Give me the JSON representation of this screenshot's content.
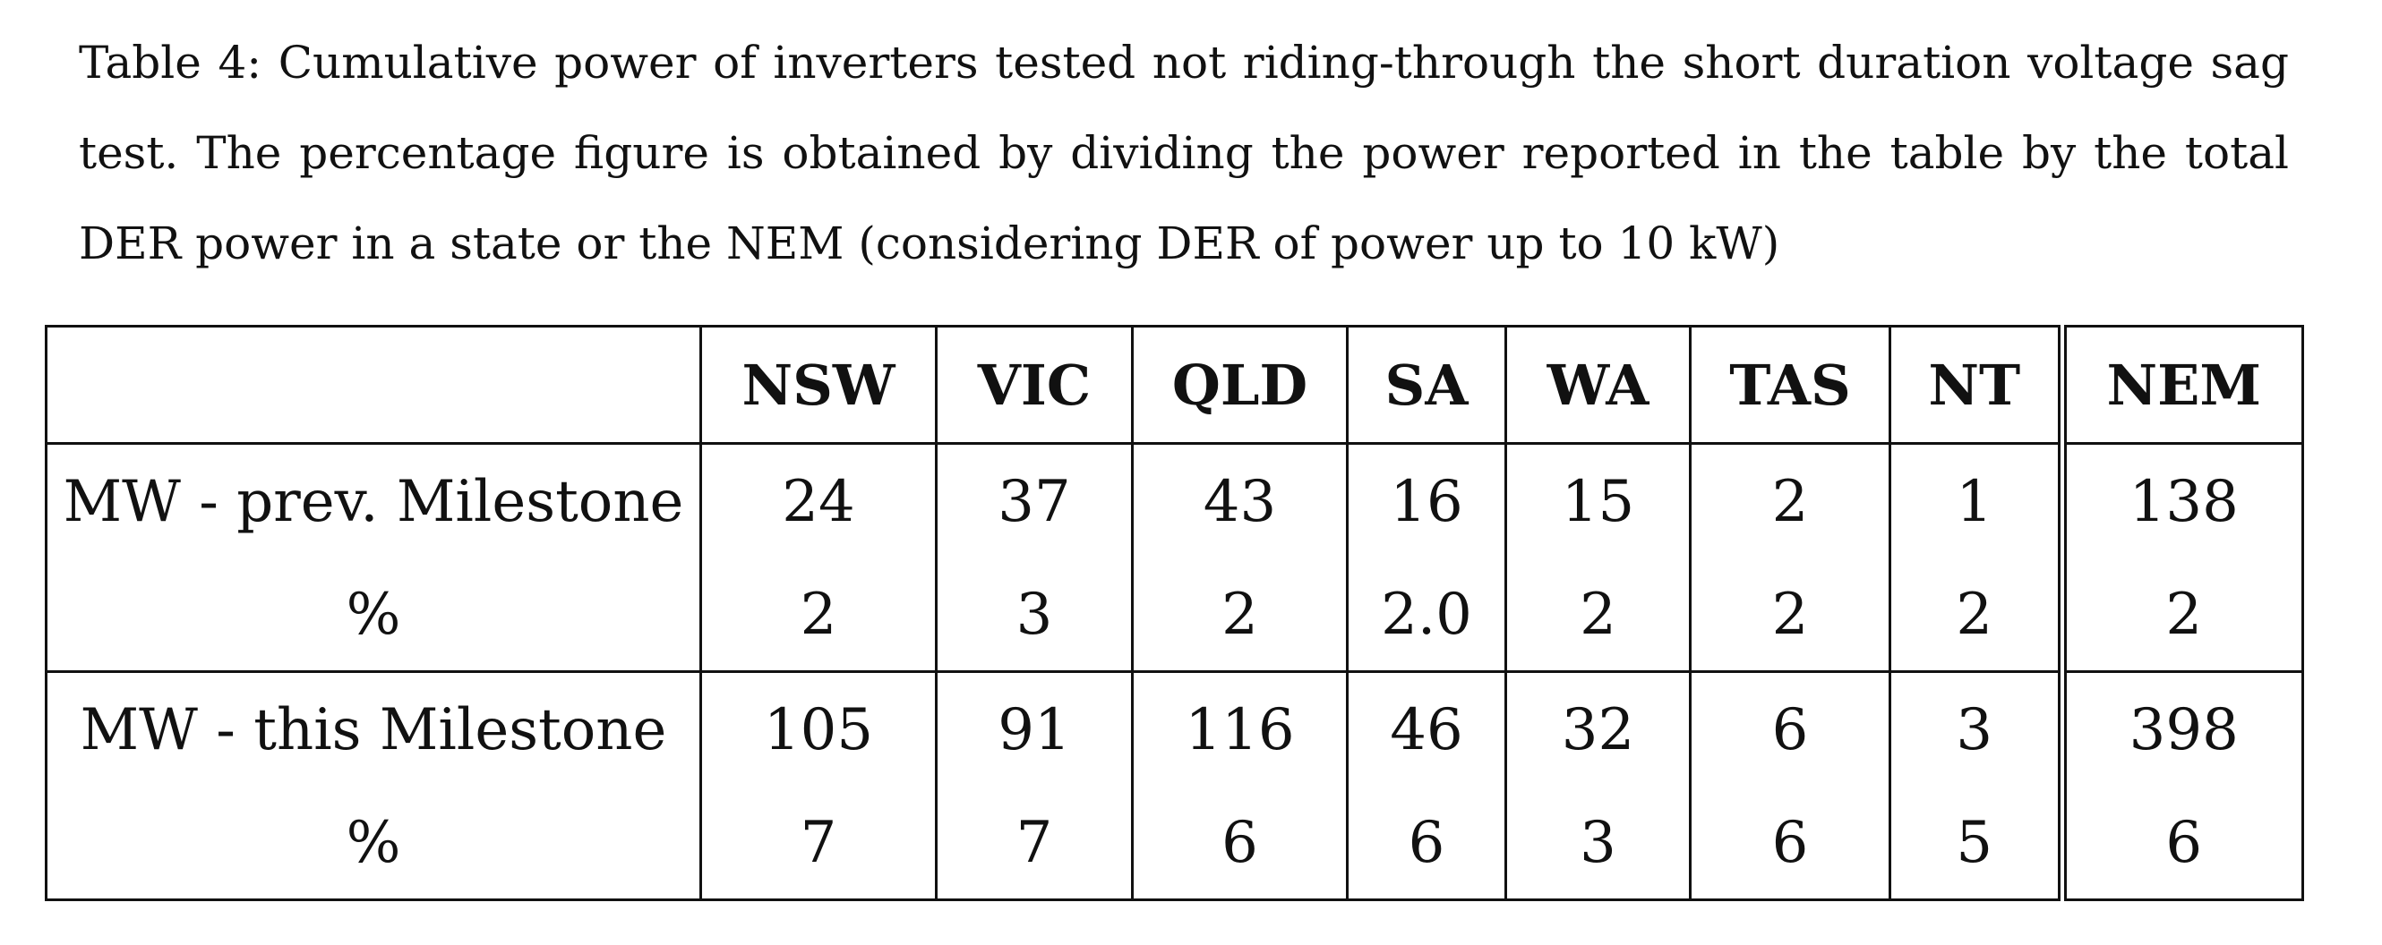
{
  "caption": "Table 4: Cumulative power of inverters tested not riding-through the short duration voltage sag test. The percentage figure is obtained by dividing the power reported in the table by the total DER power in a state or the NEM (considering DER of power up to 10 kW)",
  "table": {
    "headers": [
      "",
      "NSW",
      "VIC",
      "QLD",
      "SA",
      "WA",
      "TAS",
      "NT",
      "NEM"
    ],
    "rows": [
      {
        "label": "MW - prev. Milestone",
        "values": [
          "24",
          "37",
          "43",
          "16",
          "15",
          "2",
          "1",
          "138"
        ]
      },
      {
        "label": "%",
        "values": [
          "2",
          "3",
          "2",
          "2.0",
          "2",
          "2",
          "2",
          "2"
        ]
      },
      {
        "label": "MW - this Milestone",
        "values": [
          "105",
          "91",
          "116",
          "46",
          "32",
          "6",
          "3",
          "398"
        ]
      },
      {
        "label": "%",
        "values": [
          "7",
          "7",
          "6",
          "6",
          "3",
          "6",
          "5",
          "6"
        ]
      }
    ]
  }
}
